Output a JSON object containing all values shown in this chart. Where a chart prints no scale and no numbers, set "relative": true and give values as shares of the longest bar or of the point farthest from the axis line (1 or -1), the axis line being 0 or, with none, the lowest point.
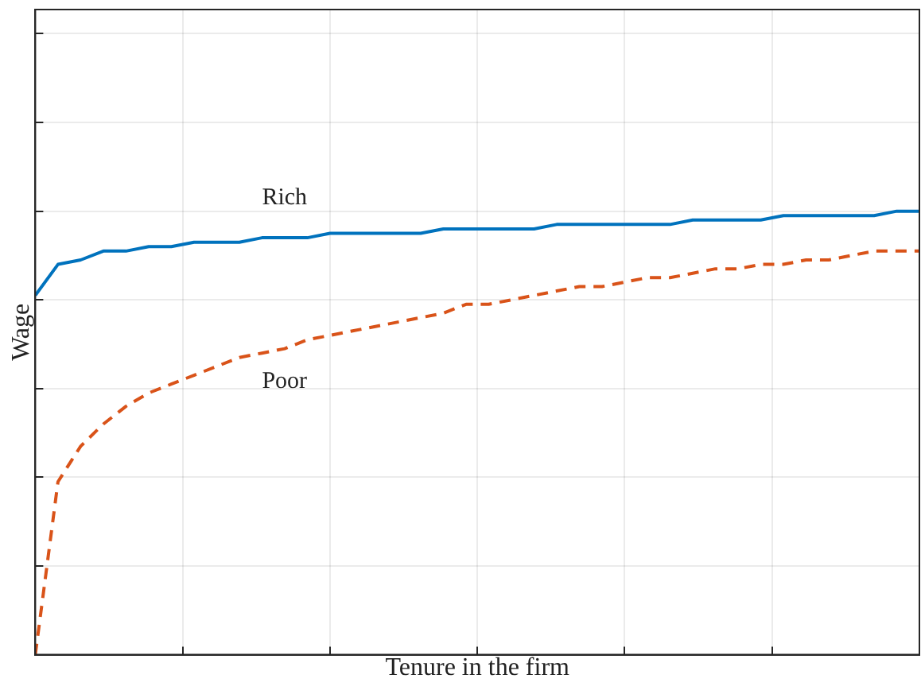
{
  "chart_data": {
    "type": "line",
    "xlabel": "Tenure in the firm",
    "ylabel": "Wage",
    "relative": true,
    "grid": true,
    "tick_labels": false,
    "legend": false,
    "marker": "none",
    "categories": [
      null,
      null,
      null,
      null,
      null,
      null,
      null,
      null,
      null,
      null,
      null,
      null,
      null,
      null,
      null,
      null,
      null,
      null,
      null,
      null,
      null,
      null,
      null,
      null,
      null,
      null,
      null,
      null,
      null,
      null,
      null,
      null,
      null,
      null,
      null,
      null,
      null,
      null,
      null,
      null
    ],
    "series": [
      {
        "name": "Rich",
        "color": "#0072bd",
        "line_style": "solid",
        "values": [
          0.81,
          0.88,
          0.89,
          0.91,
          0.91,
          0.92,
          0.92,
          0.93,
          0.93,
          0.93,
          0.94,
          0.94,
          0.94,
          0.95,
          0.95,
          0.95,
          0.95,
          0.95,
          0.96,
          0.96,
          0.96,
          0.96,
          0.96,
          0.97,
          0.97,
          0.97,
          0.97,
          0.97,
          0.97,
          0.98,
          0.98,
          0.98,
          0.98,
          0.99,
          0.99,
          0.99,
          0.99,
          0.99,
          1.0,
          1.0
        ]
      },
      {
        "name": "Poor",
        "color": "#d95319",
        "line_style": "dashed",
        "values": [
          0,
          0.39,
          0.47,
          0.52,
          0.56,
          0.59,
          0.61,
          0.63,
          0.65,
          0.67,
          0.68,
          0.69,
          0.71,
          0.72,
          0.73,
          0.74,
          0.75,
          0.76,
          0.77,
          0.79,
          0.79,
          0.8,
          0.81,
          0.82,
          0.83,
          0.83,
          0.84,
          0.85,
          0.85,
          0.86,
          0.87,
          0.87,
          0.88,
          0.88,
          0.89,
          0.89,
          0.9,
          0.91,
          0.91,
          0.91
        ]
      }
    ]
  }
}
